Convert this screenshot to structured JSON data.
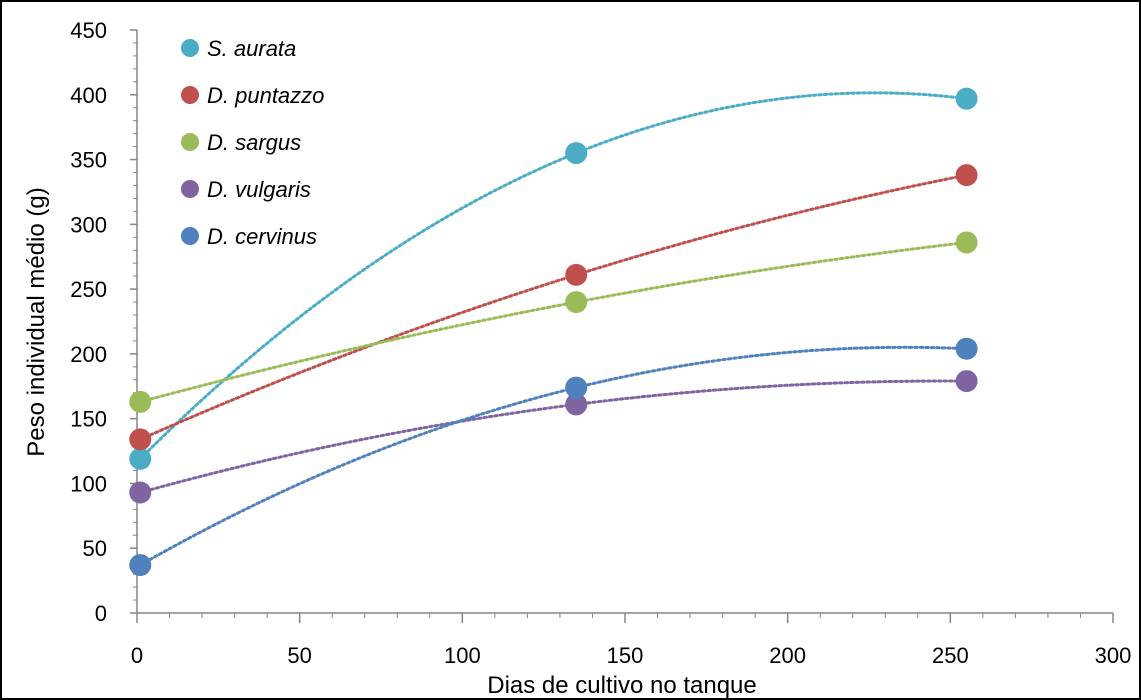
{
  "chart_data": {
    "type": "scatter",
    "title": "",
    "xlabel": "Dias de cultivo no tanque",
    "ylabel": "Peso individual médio (g)",
    "xlim": [
      0,
      300
    ],
    "ylim": [
      0,
      450
    ],
    "x_ticks": [
      0,
      50,
      100,
      150,
      200,
      250,
      300
    ],
    "y_ticks": [
      0,
      50,
      100,
      150,
      200,
      250,
      300,
      350,
      400,
      450
    ],
    "grid": false,
    "legend": "top-left",
    "trendline": "dotted polynomial",
    "series": [
      {
        "name": "S. aurata",
        "color": "#4bacc6",
        "x": [
          1,
          135,
          255
        ],
        "y": [
          119,
          355,
          397
        ]
      },
      {
        "name": "D. puntazzo",
        "color": "#c0504d",
        "x": [
          1,
          135,
          255
        ],
        "y": [
          134,
          261,
          338
        ]
      },
      {
        "name": "D. sargus",
        "color": "#9bbb59",
        "x": [
          1,
          135,
          255
        ],
        "y": [
          163,
          240,
          286
        ]
      },
      {
        "name": "D. vulgaris",
        "color": "#8064a2",
        "x": [
          1,
          135,
          255
        ],
        "y": [
          93,
          161,
          179
        ]
      },
      {
        "name": "D. cervinus",
        "color": "#4f81bd",
        "x": [
          1,
          135,
          255
        ],
        "y": [
          37,
          174,
          204
        ]
      }
    ]
  }
}
